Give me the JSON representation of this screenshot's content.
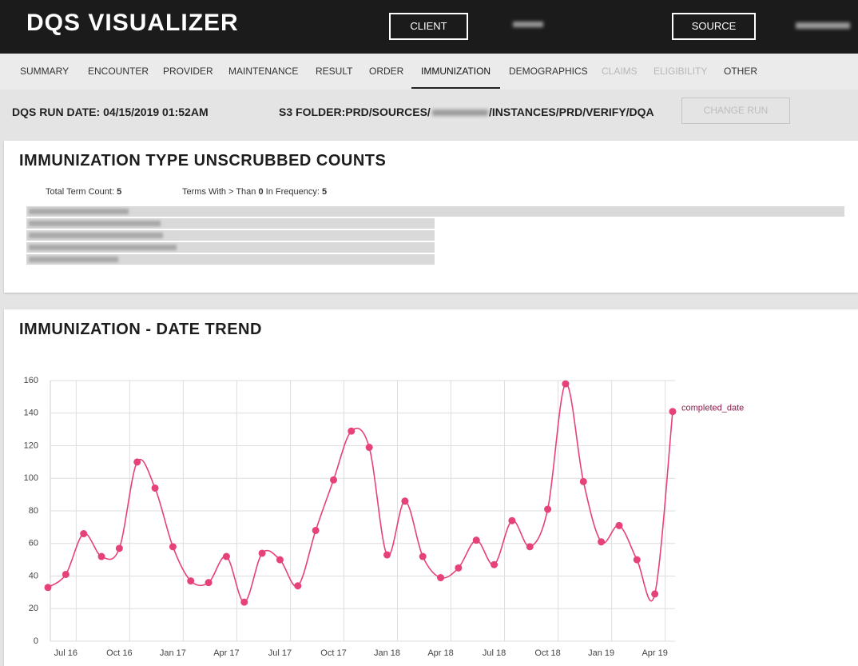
{
  "header": {
    "title": "DQS VISUALIZER",
    "buttons": [
      "CLIENT",
      "SOURCE"
    ]
  },
  "nav": {
    "items": [
      "SUMMARY",
      "ENCOUNTER",
      "PROVIDER",
      "MAINTENANCE",
      "RESULT",
      "ORDER",
      "IMMUNIZATION",
      "DEMOGRAPHICS",
      "CLAIMS",
      "ELIGIBILITY",
      "OTHER"
    ],
    "active_index": 6,
    "disabled_indices": [
      8,
      9
    ]
  },
  "run": {
    "date_label": "DQS RUN DATE: 04/15/2019 01:52AM",
    "folder_prefix": "S3 FOLDER:PRD/SOURCES/",
    "folder_suffix": "/INSTANCES/PRD/VERIFY/DQA",
    "button": "CHANGE RUN"
  },
  "counts_card": {
    "title": "IMMUNIZATION TYPE UNSCRUBBED COUNTS",
    "total_label": "Total Term Count:",
    "total": 5,
    "threshold_prefix": "Terms With > Than",
    "threshold": 0,
    "threshold_suffix": "In Frequency:",
    "frequency_count": 5
  },
  "chart_data": {
    "type": "line",
    "title": "IMMUNIZATION - DATE TREND",
    "x": [
      "2016-06",
      "2016-07",
      "2016-08",
      "2016-09",
      "2016-10",
      "2016-11",
      "2016-12",
      "2017-01",
      "2017-02",
      "2017-03",
      "2017-04",
      "2017-05",
      "2017-06",
      "2017-07",
      "2017-08",
      "2017-09",
      "2017-10",
      "2017-11",
      "2017-12",
      "2018-01",
      "2018-02",
      "2018-03",
      "2018-04",
      "2018-05",
      "2018-06",
      "2018-07",
      "2018-08",
      "2018-09",
      "2018-10",
      "2018-11",
      "2018-12",
      "2019-01",
      "2019-02",
      "2019-03",
      "2019-04",
      "2019-05"
    ],
    "series": [
      {
        "name": "completed_date",
        "color": "#e6417a",
        "label_color": "#8b1a4a",
        "values": [
          33,
          41,
          66,
          52,
          57,
          110,
          94,
          58,
          37,
          36,
          52,
          24,
          54,
          50,
          34,
          68,
          99,
          129,
          119,
          53,
          86,
          52,
          39,
          45,
          62,
          47,
          74,
          58,
          81,
          158,
          98,
          61,
          71,
          50,
          29,
          141
        ]
      }
    ],
    "xlim": [
      "2016-06",
      "2019-05"
    ],
    "xticks": [
      {
        "value": "2016-07",
        "label": "Jul 16"
      },
      {
        "value": "2016-10",
        "label": "Oct 16"
      },
      {
        "value": "2017-01",
        "label": "Jan 17"
      },
      {
        "value": "2017-04",
        "label": "Apr 17"
      },
      {
        "value": "2017-07",
        "label": "Jul 17"
      },
      {
        "value": "2017-10",
        "label": "Oct 17"
      },
      {
        "value": "2018-01",
        "label": "Jan 18"
      },
      {
        "value": "2018-04",
        "label": "Apr 18"
      },
      {
        "value": "2018-07",
        "label": "Jul 18"
      },
      {
        "value": "2018-10",
        "label": "Oct 18"
      },
      {
        "value": "2019-01",
        "label": "Jan 19"
      },
      {
        "value": "2019-04",
        "label": "Apr 19"
      }
    ],
    "ylim": [
      0,
      160
    ],
    "yticks": [
      0,
      20,
      40,
      60,
      80,
      100,
      120,
      140,
      160
    ],
    "grid": true
  }
}
